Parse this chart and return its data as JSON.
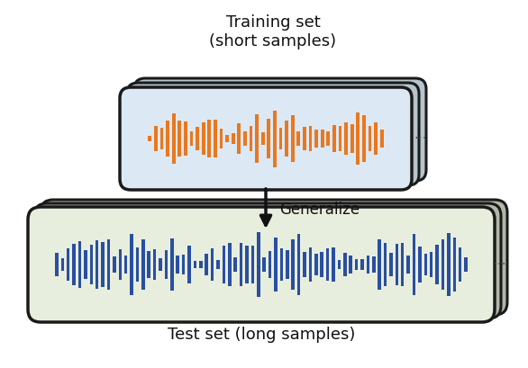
{
  "title_top": "Training set\n(short samples)",
  "title_bottom": "Test set (long samples)",
  "arrow_label": "Generalize",
  "bg_color": "#ffffff",
  "train_box_fill": "#dce9f5",
  "train_box_edge": "#1a1a1a",
  "train_box_shadow_fill": "#b8c4cc",
  "train_waveform_color": "#e87820",
  "test_box_fill": "#e8eedd",
  "test_box_edge": "#1a1a1a",
  "test_box_shadow_fill": "#b0b8a8",
  "test_waveform_color": "#2a4fa0",
  "font_size_label": 13,
  "font_size_arrow": 12,
  "figw": 5.86,
  "figh": 4.1,
  "dpi": 100
}
